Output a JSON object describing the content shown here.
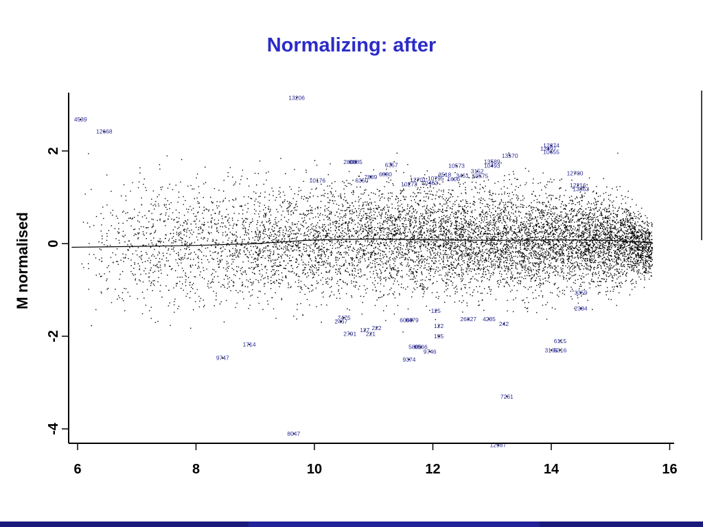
{
  "slide": {
    "title": "Normalizing: after"
  },
  "chart_data": {
    "type": "scatter",
    "title": "",
    "xlabel": "",
    "ylabel": "M normalised",
    "xlim": [
      5.8,
      16.1
    ],
    "ylim": [
      -4.3,
      3.2
    ],
    "x_ticks": [
      6,
      8,
      10,
      12,
      14,
      16
    ],
    "y_ticks": [
      2,
      0,
      -2,
      -4
    ],
    "grid": false,
    "fit_line": {
      "x": [
        5.9,
        7,
        8,
        9,
        10,
        11,
        12,
        13,
        14,
        15,
        15.7
      ],
      "y": [
        -0.08,
        -0.06,
        -0.04,
        0.0,
        0.08,
        0.1,
        0.08,
        0.07,
        0.08,
        0.07,
        0.02
      ]
    },
    "labeled_points": [
      {
        "label": "13206",
        "x": 9.7,
        "y": 3.15
      },
      {
        "label": "4539",
        "x": 6.05,
        "y": 2.68
      },
      {
        "label": "12668",
        "x": 6.45,
        "y": 2.42
      },
      {
        "label": "12874",
        "x": 14.0,
        "y": 2.12
      },
      {
        "label": "13497",
        "x": 13.95,
        "y": 2.05
      },
      {
        "label": "10655",
        "x": 14.0,
        "y": 1.98
      },
      {
        "label": "13570",
        "x": 13.3,
        "y": 1.9
      },
      {
        "label": "13589",
        "x": 13.0,
        "y": 1.77
      },
      {
        "label": "10493",
        "x": 13.0,
        "y": 1.68
      },
      {
        "label": "10573",
        "x": 12.4,
        "y": 1.68
      },
      {
        "label": "2808",
        "x": 10.6,
        "y": 1.76
      },
      {
        "label": "3885",
        "x": 10.7,
        "y": 1.76
      },
      {
        "label": "6357",
        "x": 11.3,
        "y": 1.7
      },
      {
        "label": "12700",
        "x": 14.4,
        "y": 1.52
      },
      {
        "label": "6880",
        "x": 11.2,
        "y": 1.5
      },
      {
        "label": "7889",
        "x": 10.95,
        "y": 1.44
      },
      {
        "label": "6350",
        "x": 10.8,
        "y": 1.36
      },
      {
        "label": "3152",
        "x": 12.75,
        "y": 1.56
      },
      {
        "label": "3518",
        "x": 12.2,
        "y": 1.49
      },
      {
        "label": "3451",
        "x": 12.5,
        "y": 1.47
      },
      {
        "label": "10575",
        "x": 12.8,
        "y": 1.46
      },
      {
        "label": "12701",
        "x": 11.75,
        "y": 1.38
      },
      {
        "label": "10795",
        "x": 12.05,
        "y": 1.41
      },
      {
        "label": "1606",
        "x": 12.35,
        "y": 1.39
      },
      {
        "label": "10176",
        "x": 10.05,
        "y": 1.36
      },
      {
        "label": "10273",
        "x": 11.6,
        "y": 1.28
      },
      {
        "label": "10463",
        "x": 11.95,
        "y": 1.31
      },
      {
        "label": "12216",
        "x": 14.45,
        "y": 1.26
      },
      {
        "label": "13863",
        "x": 14.5,
        "y": 1.18
      },
      {
        "label": "3359",
        "x": 14.5,
        "y": -1.06
      },
      {
        "label": "2384",
        "x": 14.5,
        "y": -1.4
      },
      {
        "label": "7475",
        "x": 10.5,
        "y": -1.6
      },
      {
        "label": "2467",
        "x": 10.45,
        "y": -1.68
      },
      {
        "label": "6089",
        "x": 11.55,
        "y": -1.65
      },
      {
        "label": "6479",
        "x": 11.65,
        "y": -1.65
      },
      {
        "label": "125",
        "x": 12.05,
        "y": -1.45
      },
      {
        "label": "26827",
        "x": 12.6,
        "y": -1.63
      },
      {
        "label": "4235",
        "x": 12.95,
        "y": -1.63
      },
      {
        "label": "242",
        "x": 13.2,
        "y": -1.73
      },
      {
        "label": "122",
        "x": 12.1,
        "y": -1.78
      },
      {
        "label": "222",
        "x": 11.05,
        "y": -1.82
      },
      {
        "label": "127",
        "x": 10.85,
        "y": -1.87
      },
      {
        "label": "2791",
        "x": 10.6,
        "y": -1.95
      },
      {
        "label": "221",
        "x": 10.95,
        "y": -1.95
      },
      {
        "label": "195",
        "x": 12.1,
        "y": -2.0
      },
      {
        "label": "1714",
        "x": 8.9,
        "y": -2.18
      },
      {
        "label": "6115",
        "x": 14.15,
        "y": -2.1
      },
      {
        "label": "5806",
        "x": 11.7,
        "y": -2.23
      },
      {
        "label": "8566",
        "x": 11.8,
        "y": -2.23
      },
      {
        "label": "9746",
        "x": 11.95,
        "y": -2.33
      },
      {
        "label": "3166",
        "x": 14.0,
        "y": -2.3
      },
      {
        "label": "5316",
        "x": 14.15,
        "y": -2.3
      },
      {
        "label": "9747",
        "x": 8.45,
        "y": -2.47
      },
      {
        "label": "9374",
        "x": 11.6,
        "y": -2.5
      },
      {
        "label": "7261",
        "x": 13.25,
        "y": -3.3
      },
      {
        "label": "8047",
        "x": 9.65,
        "y": -4.1
      },
      {
        "label": "12987",
        "x": 13.1,
        "y": -4.35
      }
    ]
  }
}
